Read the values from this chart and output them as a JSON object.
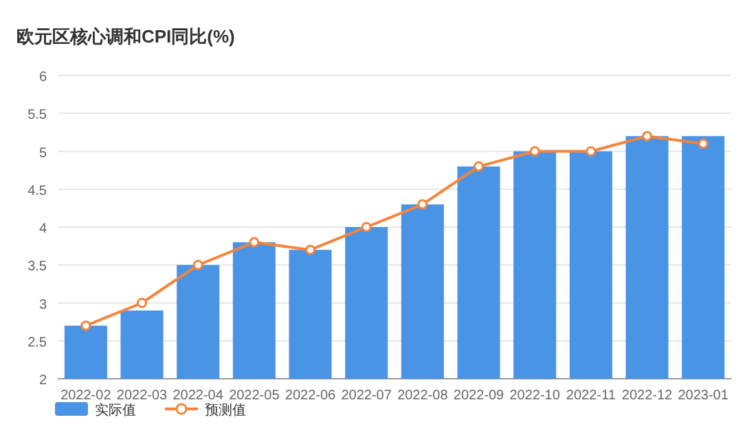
{
  "chart_data": {
    "type": "bar",
    "title": "欧元区核心调和CPI同比(%)",
    "categories": [
      "2022-02",
      "2022-03",
      "2022-04",
      "2022-05",
      "2022-06",
      "2022-07",
      "2022-08",
      "2022-09",
      "2022-10",
      "2022-11",
      "2022-12",
      "2023-01"
    ],
    "series": [
      {
        "name": "实际值",
        "color": "#4a94e6",
        "values": [
          2.7,
          2.9,
          3.5,
          3.8,
          3.7,
          4.0,
          4.3,
          4.8,
          5.0,
          5.0,
          5.2,
          5.2
        ]
      },
      {
        "name": "预测值",
        "type": "line",
        "color": "#f5843c",
        "values": [
          2.7,
          3.0,
          3.5,
          3.8,
          3.7,
          4.0,
          4.3,
          4.8,
          5.0,
          5.0,
          5.2,
          5.1
        ]
      }
    ],
    "ylim": [
      2,
      6
    ],
    "yticks": [
      2,
      2.5,
      3,
      3.5,
      4,
      4.5,
      5,
      5.5,
      6
    ],
    "grid": "y",
    "legend": "bottom",
    "marker": "circle"
  }
}
